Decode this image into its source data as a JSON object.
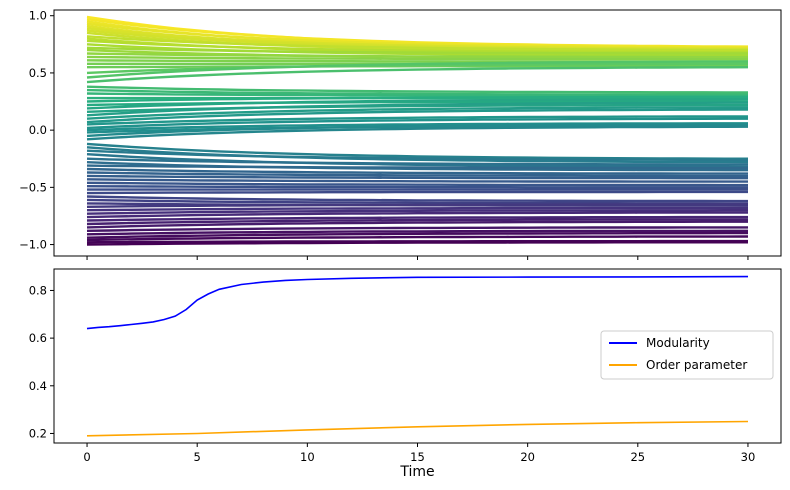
{
  "chart_data": [
    {
      "type": "line",
      "title": "",
      "xlabel": "",
      "ylabel": "",
      "xlim": [
        -1.5,
        31.5
      ],
      "ylim": [
        -1.1,
        1.05
      ],
      "y_ticks": [
        -1.0,
        -0.5,
        0.0,
        0.5,
        1.0
      ],
      "y_tick_labels": [
        "−1.0",
        "−0.5",
        "0.0",
        "0.5",
        "1.0"
      ],
      "x_ticks": [
        0,
        5,
        10,
        15,
        20,
        25,
        30
      ],
      "x_tick_labels_visible": false,
      "grid": false,
      "colormap": "viridis",
      "series_description": "many trajectories colored by initial value",
      "series": [
        {
          "start": 0.99,
          "end": 0.72
        },
        {
          "start": 0.97,
          "end": 0.73
        },
        {
          "start": 0.95,
          "end": 0.7
        },
        {
          "start": 0.93,
          "end": 0.72
        },
        {
          "start": 0.91,
          "end": 0.69
        },
        {
          "start": 0.89,
          "end": 0.71
        },
        {
          "start": 0.87,
          "end": 0.7
        },
        {
          "start": 0.85,
          "end": 0.68
        },
        {
          "start": 0.82,
          "end": 0.7
        },
        {
          "start": 0.8,
          "end": 0.66
        },
        {
          "start": 0.78,
          "end": 0.68
        },
        {
          "start": 0.75,
          "end": 0.65
        },
        {
          "start": 0.72,
          "end": 0.67
        },
        {
          "start": 0.7,
          "end": 0.63
        },
        {
          "start": 0.67,
          "end": 0.64
        },
        {
          "start": 0.64,
          "end": 0.62
        },
        {
          "start": 0.61,
          "end": 0.6
        },
        {
          "start": 0.58,
          "end": 0.58
        },
        {
          "start": 0.55,
          "end": 0.56
        },
        {
          "start": 0.5,
          "end": 0.58
        },
        {
          "start": 0.46,
          "end": 0.6
        },
        {
          "start": 0.42,
          "end": 0.55
        },
        {
          "start": 0.38,
          "end": 0.33
        },
        {
          "start": 0.35,
          "end": 0.31
        },
        {
          "start": 0.32,
          "end": 0.3
        },
        {
          "start": 0.28,
          "end": 0.28
        },
        {
          "start": 0.25,
          "end": 0.29
        },
        {
          "start": 0.22,
          "end": 0.25
        },
        {
          "start": 0.19,
          "end": 0.27
        },
        {
          "start": 0.16,
          "end": 0.22
        },
        {
          "start": 0.13,
          "end": 0.24
        },
        {
          "start": 0.1,
          "end": 0.2
        },
        {
          "start": 0.07,
          "end": 0.18
        },
        {
          "start": 0.05,
          "end": 0.12
        },
        {
          "start": 0.02,
          "end": 0.1
        },
        {
          "start": 0.0,
          "end": 0.06
        },
        {
          "start": -0.02,
          "end": 0.04
        },
        {
          "start": -0.05,
          "end": 0.05
        },
        {
          "start": -0.08,
          "end": 0.03
        },
        {
          "start": -0.12,
          "end": -0.25
        },
        {
          "start": -0.15,
          "end": -0.28
        },
        {
          "start": -0.18,
          "end": -0.26
        },
        {
          "start": -0.21,
          "end": -0.32
        },
        {
          "start": -0.25,
          "end": -0.3
        },
        {
          "start": -0.28,
          "end": -0.35
        },
        {
          "start": -0.31,
          "end": -0.33
        },
        {
          "start": -0.34,
          "end": -0.38
        },
        {
          "start": -0.37,
          "end": -0.4
        },
        {
          "start": -0.4,
          "end": -0.42
        },
        {
          "start": -0.43,
          "end": -0.45
        },
        {
          "start": -0.46,
          "end": -0.48
        },
        {
          "start": -0.49,
          "end": -0.5
        },
        {
          "start": -0.52,
          "end": -0.52
        },
        {
          "start": -0.55,
          "end": -0.54
        },
        {
          "start": -0.58,
          "end": -0.62
        },
        {
          "start": -0.61,
          "end": -0.64
        },
        {
          "start": -0.64,
          "end": -0.66
        },
        {
          "start": -0.67,
          "end": -0.65
        },
        {
          "start": -0.7,
          "end": -0.68
        },
        {
          "start": -0.73,
          "end": -0.7
        },
        {
          "start": -0.76,
          "end": -0.72
        },
        {
          "start": -0.79,
          "end": -0.76
        },
        {
          "start": -0.82,
          "end": -0.78
        },
        {
          "start": -0.85,
          "end": -0.8
        },
        {
          "start": -0.88,
          "end": -0.85
        },
        {
          "start": -0.91,
          "end": -0.88
        },
        {
          "start": -0.94,
          "end": -0.9
        },
        {
          "start": -0.96,
          "end": -0.93
        },
        {
          "start": -0.98,
          "end": -0.97
        },
        {
          "start": -1.0,
          "end": -0.98
        }
      ]
    },
    {
      "type": "line",
      "title": "",
      "xlabel": "Time",
      "ylabel": "",
      "xlim": [
        -1.5,
        31.5
      ],
      "ylim": [
        0.16,
        0.89
      ],
      "y_ticks": [
        0.2,
        0.4,
        0.6,
        0.8
      ],
      "y_tick_labels": [
        "0.2",
        "0.4",
        "0.6",
        "0.8"
      ],
      "x_ticks": [
        0,
        5,
        10,
        15,
        20,
        25,
        30
      ],
      "x_tick_labels": [
        "0",
        "5",
        "10",
        "15",
        "20",
        "25",
        "30"
      ],
      "grid": false,
      "legend_position": "right",
      "series": [
        {
          "name": "Modularity",
          "color": "#0000ff",
          "x": [
            0,
            0.5,
            1,
            1.5,
            2,
            2.5,
            3,
            3.5,
            4,
            4.5,
            5,
            5.5,
            6,
            7,
            8,
            9,
            10,
            12,
            15,
            20,
            25,
            30
          ],
          "y": [
            0.64,
            0.645,
            0.648,
            0.652,
            0.657,
            0.662,
            0.668,
            0.678,
            0.692,
            0.72,
            0.76,
            0.785,
            0.805,
            0.825,
            0.835,
            0.842,
            0.846,
            0.851,
            0.855,
            0.856,
            0.857,
            0.858
          ]
        },
        {
          "name": "Order parameter",
          "color": "#ffa500",
          "x": [
            0,
            5,
            10,
            15,
            20,
            25,
            30
          ],
          "y": [
            0.19,
            0.2,
            0.215,
            0.228,
            0.238,
            0.245,
            0.25
          ]
        }
      ]
    }
  ]
}
